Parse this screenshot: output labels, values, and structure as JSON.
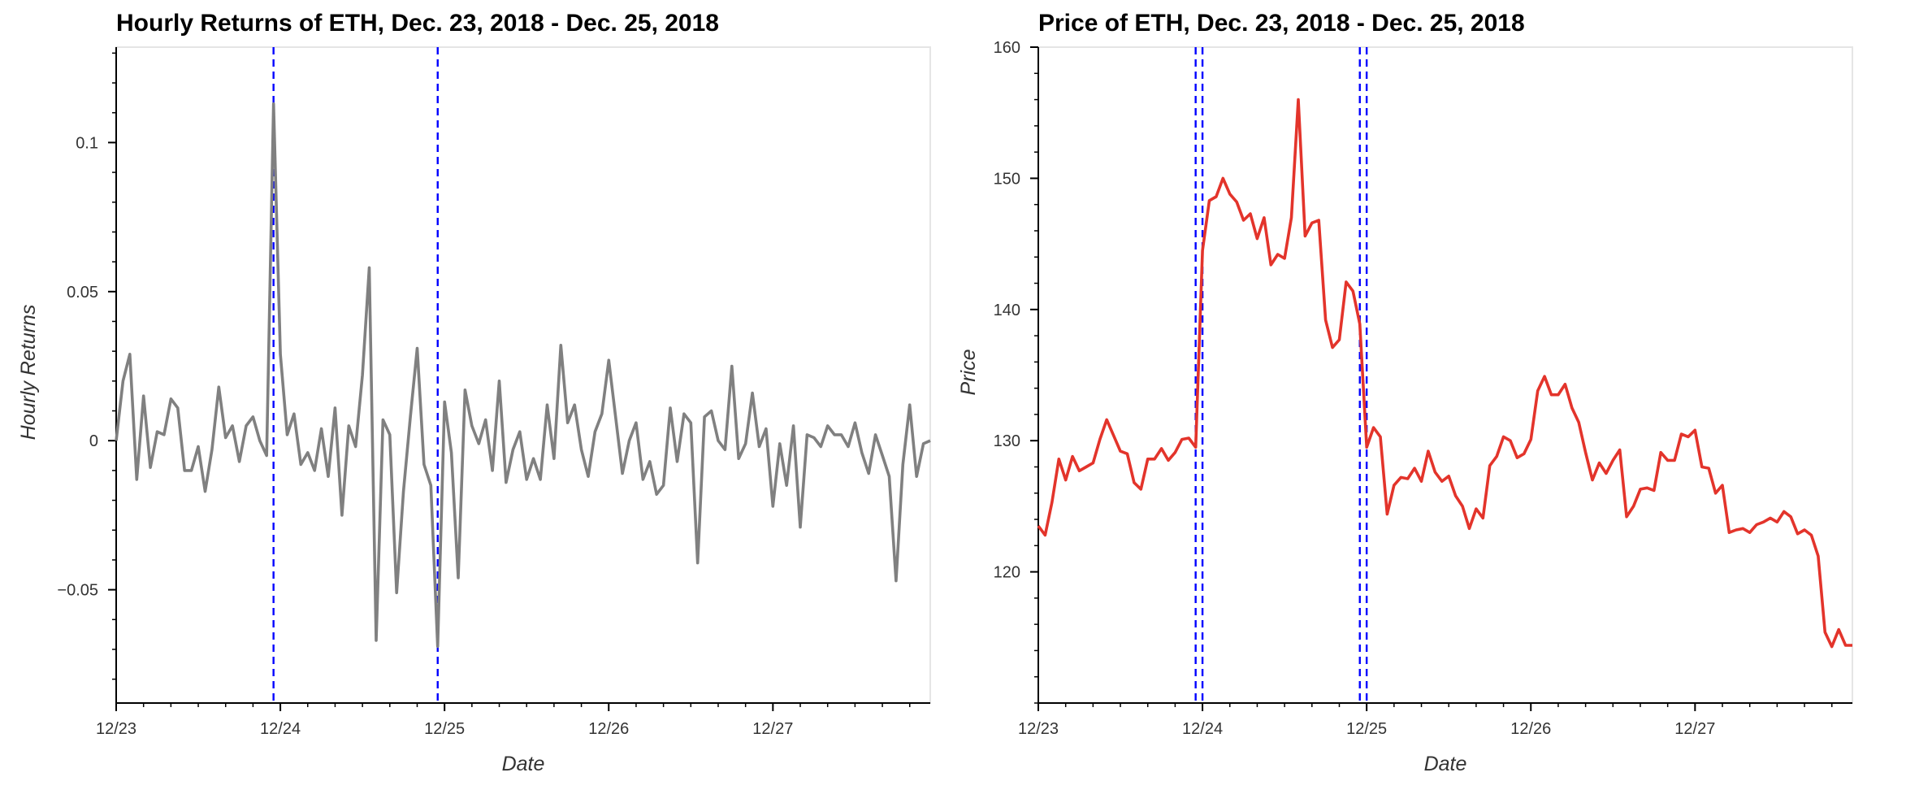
{
  "colors": {
    "returns_line": "#808080",
    "price_line": "#e3342b",
    "event_line": "#0000ff",
    "frame": "#e5e5e5",
    "axis": "#000000"
  },
  "chart_data": [
    {
      "type": "line",
      "title": "Hourly Returns of ETH, Dec. 23, 2018 - Dec. 25, 2018",
      "xlabel": "Date",
      "ylabel": "Hourly Returns",
      "x_range": [
        "2018-12-23T00:00",
        "2018-12-27T23:00"
      ],
      "x_ticks": [
        {
          "date": "2018-12-23T00:00",
          "label": "12/23"
        },
        {
          "date": "2018-12-24T00:00",
          "label": "12/24"
        },
        {
          "date": "2018-12-25T00:00",
          "label": "12/25"
        },
        {
          "date": "2018-12-26T00:00",
          "label": "12/26"
        },
        {
          "date": "2018-12-27T00:00",
          "label": "12/27"
        }
      ],
      "ylim": [
        -0.088,
        0.132
      ],
      "y_ticks": [
        {
          "value": -0.05,
          "label": "−0.05"
        },
        {
          "value": 0,
          "label": "0"
        },
        {
          "value": 0.05,
          "label": "0.05"
        },
        {
          "value": 0.1,
          "label": "0.1"
        }
      ],
      "grid": false,
      "vlines": [
        "2018-12-23T23:00",
        "2018-12-24T23:00"
      ],
      "series": [
        {
          "x_start": "2018-12-23T00:00",
          "step_hours": 1,
          "values": [
            0.0,
            0.02,
            0.029,
            -0.013,
            0.015,
            -0.009,
            0.003,
            0.002,
            0.014,
            0.011,
            -0.01,
            -0.01,
            -0.002,
            -0.017,
            -0.003,
            0.018,
            0.001,
            0.005,
            -0.007,
            0.005,
            0.008,
            0.0,
            -0.005,
            0.113,
            0.029,
            0.002,
            0.009,
            -0.008,
            -0.004,
            -0.01,
            0.004,
            -0.012,
            0.011,
            -0.025,
            0.005,
            -0.002,
            0.022,
            0.058,
            -0.067,
            0.007,
            0.002,
            -0.051,
            -0.017,
            0.008,
            0.031,
            -0.008,
            -0.015,
            -0.069,
            0.013,
            -0.004,
            -0.046,
            0.017,
            0.005,
            -0.001,
            0.007,
            -0.01,
            0.02,
            -0.014,
            -0.003,
            0.003,
            -0.013,
            -0.006,
            -0.013,
            0.012,
            -0.006,
            0.032,
            0.006,
            0.012,
            -0.003,
            -0.012,
            0.003,
            0.009,
            0.027,
            0.008,
            -0.011,
            0.0,
            0.006,
            -0.013,
            -0.007,
            -0.018,
            -0.015,
            0.011,
            -0.007,
            0.009,
            0.006,
            -0.041,
            0.008,
            0.01,
            0.0,
            -0.003,
            0.025,
            -0.006,
            -0.001,
            0.016,
            -0.002,
            0.004,
            -0.022,
            -0.001,
            -0.015,
            0.005,
            -0.029,
            0.002,
            0.001,
            -0.002,
            0.005,
            0.002,
            0.002,
            -0.002,
            0.006,
            -0.004,
            -0.011,
            0.002,
            -0.005,
            -0.012,
            -0.047,
            -0.008,
            0.012,
            -0.012,
            -0.001,
            0.0
          ]
        }
      ]
    },
    {
      "type": "line",
      "title": "Price of ETH, Dec. 23, 2018 - Dec. 25, 2018",
      "xlabel": "Date",
      "ylabel": "Price",
      "x_range": [
        "2018-12-23T00:00",
        "2018-12-27T23:00"
      ],
      "x_ticks": [
        {
          "date": "2018-12-23T00:00",
          "label": "12/23"
        },
        {
          "date": "2018-12-24T00:00",
          "label": "12/24"
        },
        {
          "date": "2018-12-25T00:00",
          "label": "12/25"
        },
        {
          "date": "2018-12-26T00:00",
          "label": "12/26"
        },
        {
          "date": "2018-12-27T00:00",
          "label": "12/27"
        }
      ],
      "ylim": [
        110,
        160
      ],
      "y_ticks": [
        {
          "value": 120,
          "label": "120"
        },
        {
          "value": 130,
          "label": "130"
        },
        {
          "value": 140,
          "label": "140"
        },
        {
          "value": 150,
          "label": "150"
        },
        {
          "value": 160,
          "label": "160"
        }
      ],
      "grid": false,
      "vlines": [
        "2018-12-23T23:00",
        "2018-12-24T00:00",
        "2018-12-24T23:00",
        "2018-12-25T00:00"
      ],
      "series": [
        {
          "x_start": "2018-12-23T00:00",
          "step_hours": 1,
          "values": [
            123.5,
            122.8,
            125.3,
            128.6,
            127.0,
            128.8,
            127.7,
            128.0,
            128.3,
            130.1,
            131.6,
            130.4,
            129.2,
            129.0,
            126.8,
            126.3,
            128.6,
            128.6,
            129.4,
            128.5,
            129.1,
            130.1,
            130.2,
            129.5,
            144.5,
            148.3,
            148.6,
            150.0,
            148.8,
            148.2,
            146.8,
            147.3,
            145.4,
            147.0,
            143.4,
            144.2,
            143.9,
            147.0,
            156.0,
            145.6,
            146.6,
            146.8,
            139.2,
            137.1,
            137.7,
            142.1,
            141.4,
            138.9,
            129.5,
            131.0,
            130.3,
            124.4,
            126.6,
            127.2,
            127.1,
            127.9,
            126.9,
            129.2,
            127.6,
            126.9,
            127.3,
            125.8,
            125.0,
            123.3,
            124.8,
            124.1,
            128.1,
            128.8,
            130.3,
            130.0,
            128.7,
            129.0,
            130.1,
            133.8,
            134.9,
            133.5,
            133.5,
            134.3,
            132.5,
            131.4,
            129.1,
            127.0,
            128.3,
            127.5,
            128.5,
            129.3,
            124.2,
            125.0,
            126.3,
            126.4,
            126.2,
            129.1,
            128.5,
            128.5,
            130.5,
            130.3,
            130.8,
            128.0,
            127.9,
            126.0,
            126.6,
            123.0,
            123.2,
            123.3,
            123.0,
            123.6,
            123.8,
            124.1,
            123.8,
            124.6,
            124.2,
            122.9,
            123.2,
            122.8,
            121.2,
            115.4,
            114.3,
            115.6,
            114.4,
            114.4
          ]
        }
      ]
    }
  ]
}
